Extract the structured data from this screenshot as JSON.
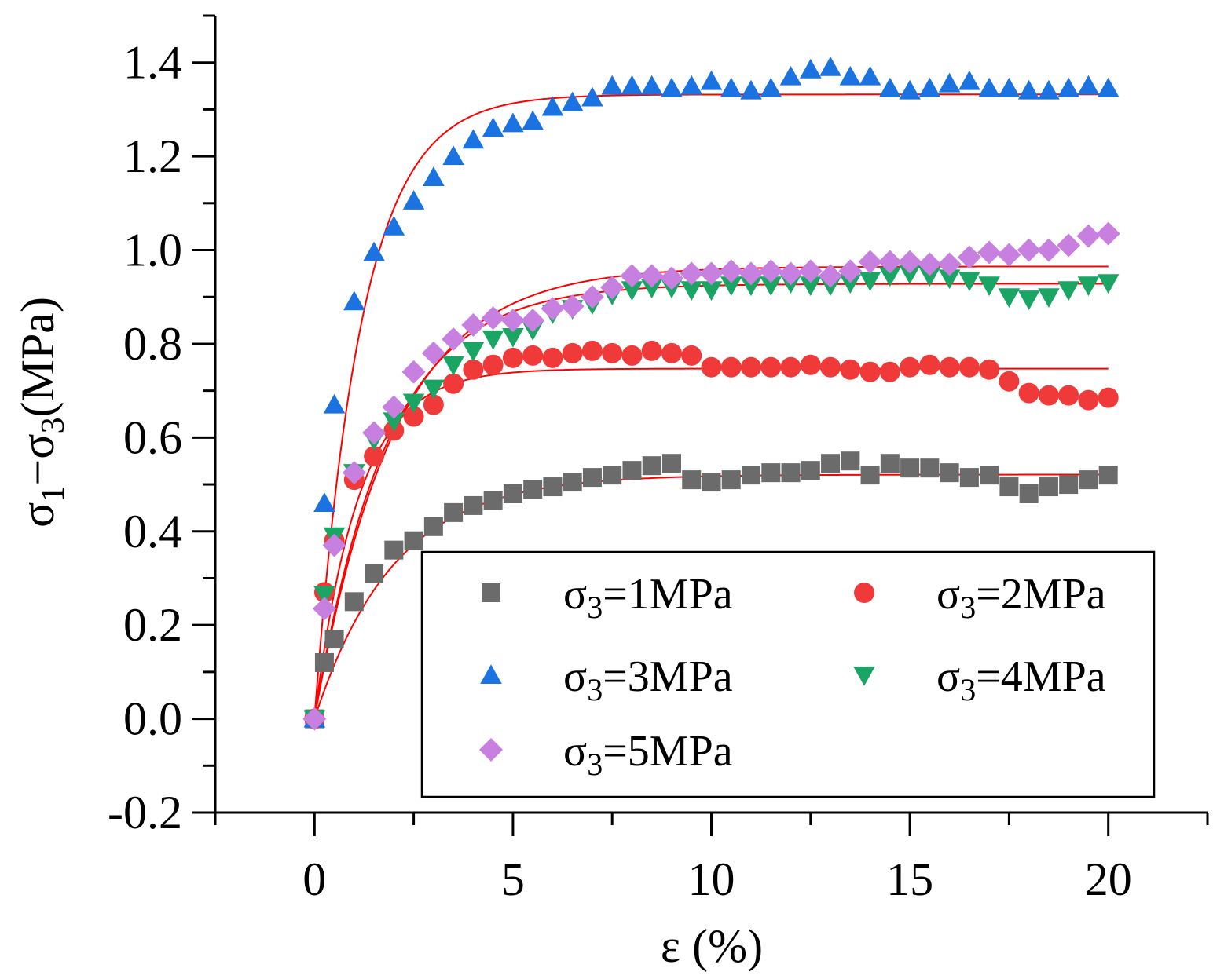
{
  "chart_data": {
    "type": "scatter",
    "xlabel": "ε (%)",
    "ylabel": "σ1−σ3(MPa)",
    "ylabel_parts": {
      "s1": "σ",
      "sub1": "1",
      "dash": "−",
      "s3": "σ",
      "sub3": "3",
      "unit": "(MPa)"
    },
    "xlim": [
      -2.5,
      22.5
    ],
    "ylim": [
      -0.2,
      1.5
    ],
    "x_ticks": [
      0,
      5,
      10,
      15,
      20
    ],
    "x_tick_labels": [
      "0",
      "5",
      "10",
      "15",
      "20"
    ],
    "y_ticks": [
      -0.2,
      0.0,
      0.2,
      0.4,
      0.6,
      0.8,
      1.0,
      1.2,
      1.4
    ],
    "y_tick_labels": [
      "-0.2",
      "0.0",
      "0.2",
      "0.4",
      "0.6",
      "0.8",
      "1.0",
      "1.2",
      "1.4"
    ],
    "legend_position": "lower-right",
    "series": [
      {
        "name": "σ3=1MPa",
        "label_prefix": "σ",
        "label_sub": "3",
        "label_suffix": "=1MPa",
        "marker": "square",
        "color": "#6b6b6b",
        "x": [
          0,
          0.25,
          0.5,
          1,
          1.5,
          2,
          2.5,
          3,
          3.5,
          4,
          4.5,
          5,
          5.5,
          6,
          6.5,
          7,
          7.5,
          8,
          8.5,
          9,
          9.5,
          10,
          10.5,
          11,
          11.5,
          12,
          12.5,
          13,
          13.5,
          14,
          14.5,
          15,
          15.5,
          16,
          16.5,
          17,
          17.5,
          18,
          18.5,
          19,
          19.5,
          20
        ],
        "y": [
          0.0,
          0.12,
          0.17,
          0.25,
          0.31,
          0.36,
          0.38,
          0.41,
          0.44,
          0.455,
          0.465,
          0.48,
          0.49,
          0.495,
          0.505,
          0.515,
          0.52,
          0.53,
          0.54,
          0.545,
          0.51,
          0.505,
          0.51,
          0.52,
          0.525,
          0.525,
          0.53,
          0.545,
          0.55,
          0.52,
          0.545,
          0.535,
          0.535,
          0.525,
          0.515,
          0.52,
          0.495,
          0.48,
          0.495,
          0.5,
          0.51,
          0.52
        ],
        "fit": {
          "peak": 0.521,
          "k": 0.5
        }
      },
      {
        "name": "σ3=2MPa",
        "label_prefix": "σ",
        "label_sub": "3",
        "label_suffix": "=2MPa",
        "marker": "circle",
        "color": "#f03a3a",
        "x": [
          0,
          0.25,
          0.5,
          1,
          1.5,
          2,
          2.5,
          3,
          3.5,
          4,
          4.5,
          5,
          5.5,
          6,
          6.5,
          7,
          7.5,
          8,
          8.5,
          9,
          9.5,
          10,
          10.5,
          11,
          11.5,
          12,
          12.5,
          13,
          13.5,
          14,
          14.5,
          15,
          15.5,
          16,
          16.5,
          17,
          17.5,
          18,
          18.5,
          19,
          19.5,
          20
        ],
        "y": [
          0.0,
          0.27,
          0.38,
          0.51,
          0.56,
          0.615,
          0.645,
          0.67,
          0.715,
          0.745,
          0.755,
          0.77,
          0.775,
          0.77,
          0.78,
          0.785,
          0.78,
          0.775,
          0.785,
          0.78,
          0.775,
          0.75,
          0.75,
          0.75,
          0.75,
          0.75,
          0.755,
          0.75,
          0.745,
          0.74,
          0.74,
          0.75,
          0.755,
          0.75,
          0.75,
          0.745,
          0.72,
          0.695,
          0.69,
          0.69,
          0.68,
          0.685
        ],
        "fit": {
          "peak": 0.747,
          "k": 0.9
        }
      },
      {
        "name": "σ3=3MPa",
        "label_prefix": "σ",
        "label_sub": "3",
        "label_suffix": "=3MPa",
        "marker": "triangle-up",
        "color": "#1a73e0",
        "x": [
          0,
          0.25,
          0.5,
          1,
          1.5,
          2,
          2.5,
          3,
          3.5,
          4,
          4.5,
          5,
          5.5,
          6,
          6.5,
          7,
          7.5,
          8,
          8.5,
          9,
          9.5,
          10,
          10.5,
          11,
          11.5,
          12,
          12.5,
          13,
          13.5,
          14,
          14.5,
          15,
          15.5,
          16,
          16.5,
          17,
          17.5,
          18,
          18.5,
          19,
          19.5,
          20
        ],
        "y": [
          0.0,
          0.46,
          0.67,
          0.89,
          0.995,
          1.05,
          1.105,
          1.155,
          1.2,
          1.235,
          1.26,
          1.27,
          1.275,
          1.305,
          1.315,
          1.325,
          1.35,
          1.35,
          1.35,
          1.345,
          1.35,
          1.36,
          1.345,
          1.34,
          1.345,
          1.37,
          1.385,
          1.39,
          1.37,
          1.37,
          1.345,
          1.34,
          1.345,
          1.355,
          1.36,
          1.345,
          1.345,
          1.34,
          1.34,
          1.345,
          1.35,
          1.345
        ],
        "fit": {
          "peak": 1.332,
          "k": 0.85
        }
      },
      {
        "name": "σ3=4MPa",
        "label_prefix": "σ",
        "label_sub": "3",
        "label_suffix": "=4MPa",
        "marker": "triangle-down",
        "color": "#1aa564",
        "x": [
          0,
          0.25,
          0.5,
          1,
          1.5,
          2,
          2.5,
          3,
          3.5,
          4,
          4.5,
          5,
          5.5,
          6,
          6.5,
          7,
          7.5,
          8,
          8.5,
          9,
          9.5,
          10,
          10.5,
          11,
          11.5,
          12,
          12.5,
          13,
          13.5,
          14,
          14.5,
          15,
          15.5,
          16,
          16.5,
          17,
          17.5,
          18,
          18.5,
          19,
          19.5,
          20
        ],
        "y": [
          0.0,
          0.265,
          0.39,
          0.525,
          0.595,
          0.635,
          0.675,
          0.705,
          0.755,
          0.785,
          0.81,
          0.815,
          0.83,
          0.865,
          0.875,
          0.885,
          0.905,
          0.915,
          0.92,
          0.92,
          0.915,
          0.915,
          0.925,
          0.925,
          0.925,
          0.93,
          0.925,
          0.925,
          0.93,
          0.935,
          0.945,
          0.95,
          0.945,
          0.94,
          0.935,
          0.925,
          0.9,
          0.895,
          0.9,
          0.915,
          0.925,
          0.93
        ],
        "fit": {
          "peak": 0.928,
          "k": 0.55
        }
      },
      {
        "name": "σ3=5MPa",
        "label_prefix": "σ",
        "label_sub": "3",
        "label_suffix": "=5MPa",
        "marker": "diamond",
        "color": "#c77fe0",
        "x": [
          0,
          0.25,
          0.5,
          1,
          1.5,
          2,
          2.5,
          3,
          3.5,
          4,
          4.5,
          5,
          5.5,
          6,
          6.5,
          7,
          7.5,
          8,
          8.5,
          9,
          9.5,
          10,
          10.5,
          11,
          11.5,
          12,
          12.5,
          13,
          13.5,
          14,
          14.5,
          15,
          15.5,
          16,
          16.5,
          17,
          17.5,
          18,
          18.5,
          19,
          19.5,
          20
        ],
        "y": [
          0.0,
          0.235,
          0.37,
          0.525,
          0.61,
          0.665,
          0.74,
          0.78,
          0.81,
          0.84,
          0.855,
          0.85,
          0.85,
          0.875,
          0.88,
          0.9,
          0.92,
          0.945,
          0.945,
          0.94,
          0.95,
          0.95,
          0.955,
          0.95,
          0.955,
          0.95,
          0.955,
          0.945,
          0.955,
          0.975,
          0.975,
          0.975,
          0.97,
          0.97,
          0.985,
          0.995,
          0.99,
          1.0,
          1.0,
          1.01,
          1.03,
          1.035
        ],
        "fit": {
          "peak": 0.965,
          "k": 0.5
        }
      }
    ],
    "fit_color": "#ff0000"
  }
}
